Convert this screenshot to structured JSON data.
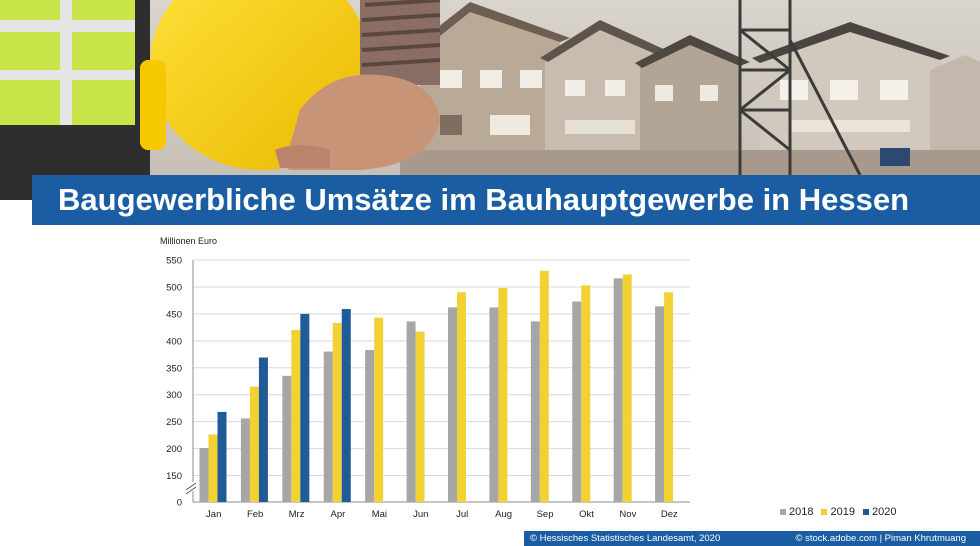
{
  "title": "Baugewerbliche Umsätze im Bauhauptgewerbe in Hessen",
  "footer": {
    "source": "© Hessisches Statistisches Landesamt, 2020",
    "photo_credit": "© stock.adobe.com | Piman Khrutmuang"
  },
  "colors": {
    "brand_blue": "#1b5da3",
    "series_2018": "#a6a6a6",
    "series_2019": "#f2d232",
    "series_2020": "#1f5b99"
  },
  "chart_data": {
    "type": "bar",
    "ylabel": "Millionen Euro",
    "yticks": [
      "550",
      "500",
      "450",
      "400",
      "350",
      "300",
      "250",
      "200",
      "150",
      "0"
    ],
    "ylim": [
      0,
      550
    ],
    "axis_break": "between 0 and 150",
    "grid": true,
    "legend_position": "bottom-right",
    "categories": [
      "Jan",
      "Feb",
      "Mrz",
      "Apr",
      "Mai",
      "Jun",
      "Jul",
      "Aug",
      "Sep",
      "Okt",
      "Nov",
      "Dez"
    ],
    "series": [
      {
        "name": "2018",
        "values": [
          201,
          256,
          335,
          380,
          383,
          436,
          462,
          462,
          436,
          473,
          516,
          464
        ]
      },
      {
        "name": "2019",
        "values": [
          226,
          315,
          420,
          433,
          443,
          417,
          490,
          498,
          530,
          503,
          523,
          490
        ]
      },
      {
        "name": "2020",
        "values": [
          268,
          369,
          450,
          459,
          null,
          null,
          null,
          null,
          null,
          null,
          null,
          null
        ]
      }
    ]
  }
}
